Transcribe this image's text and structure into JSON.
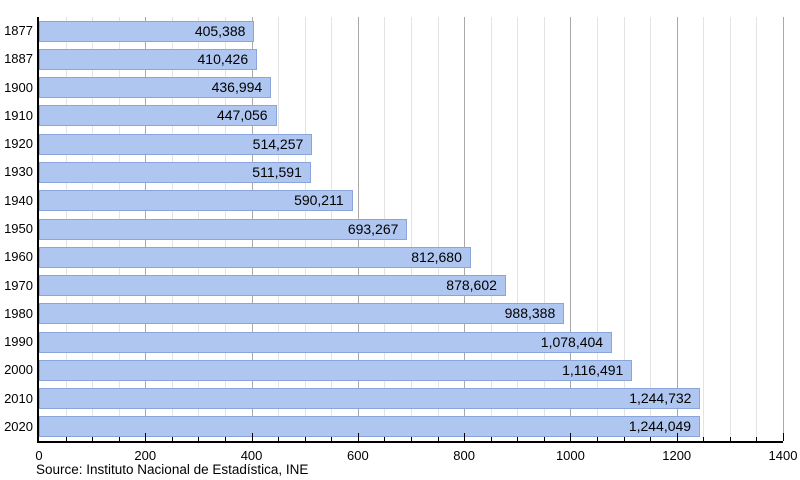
{
  "chart_data": {
    "type": "bar",
    "orientation": "horizontal",
    "title": "",
    "categories": [
      "1877",
      "1887",
      "1900",
      "1910",
      "1920",
      "1930",
      "1940",
      "1950",
      "1960",
      "1970",
      "1980",
      "1990",
      "2000",
      "2010",
      "2020"
    ],
    "values": [
      405388,
      410426,
      436994,
      447056,
      514257,
      511591,
      590211,
      693267,
      812680,
      878602,
      988388,
      1078404,
      1116491,
      1244732,
      1244049
    ],
    "value_labels": [
      "405,388",
      "410,426",
      "436,994",
      "447,056",
      "514,257",
      "511,591",
      "590,211",
      "693,267",
      "812,680",
      "878,602",
      "988,388",
      "1,078,404",
      "1,116,491",
      "1,244,732",
      "1,244,049"
    ],
    "x_axis": {
      "min": 0,
      "max": 1400,
      "major_step": 200,
      "minor_step": 50,
      "unit_scale": "thousands",
      "tick_labels": [
        "0",
        "200",
        "400",
        "600",
        "800",
        "1000",
        "1200",
        "1400"
      ]
    },
    "grid": "on",
    "legend": "none",
    "source": "Source: Instituto Nacional de Estadística, INE",
    "colors": {
      "bar_fill": "#aec6f0",
      "bar_border": "#8aa5d9",
      "grid_minor": "#e3e3e3",
      "grid_major": "#a9a9a9",
      "axis": "#000000",
      "text": "#000000"
    }
  }
}
